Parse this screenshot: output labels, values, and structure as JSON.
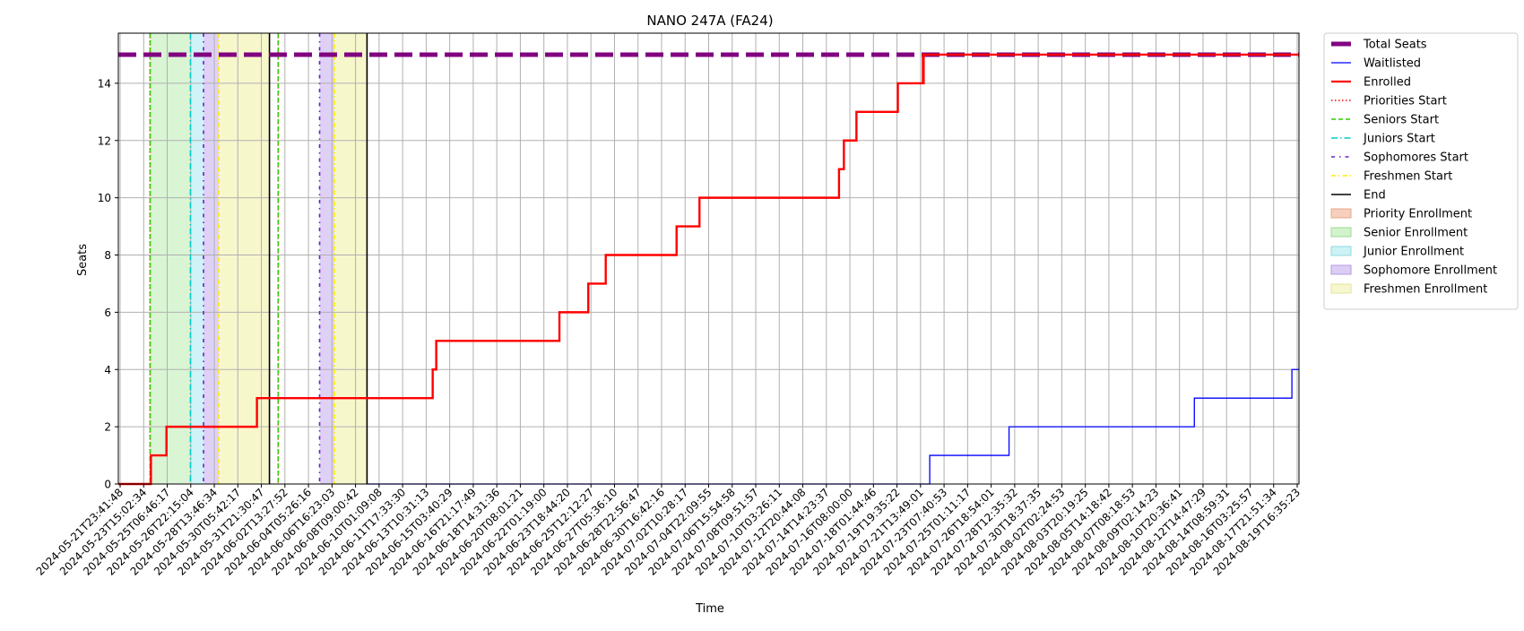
{
  "chart_data": {
    "type": "line",
    "title": "NANO 247A (FA24)",
    "xlabel": "Time",
    "ylabel": "Seats",
    "ylim": [
      0,
      15.75
    ],
    "xlim": [
      "2024-05-21T23:41:48",
      "2024-08-20T06:00:00"
    ],
    "grid": true,
    "legend_position": "outside-right",
    "y_ticks": [
      0,
      2,
      4,
      6,
      8,
      10,
      12,
      14
    ],
    "x_tick_labels": [
      "2024-05-21T23:41:48",
      "2024-05-23T15:02:34",
      "2024-05-25T06:46:17",
      "2024-05-26T22:15:04",
      "2024-05-28T13:46:34",
      "2024-05-30T05:42:17",
      "2024-05-31T21:30:47",
      "2024-06-02T13:27:52",
      "2024-06-04T05:26:16",
      "2024-06-06T16:23:03",
      "2024-06-08T09:00:42",
      "2024-06-10T01:09:08",
      "2024-06-11T17:33:30",
      "2024-06-13T10:31:13",
      "2024-06-15T03:40:29",
      "2024-06-16T21:17:49",
      "2024-06-18T14:31:36",
      "2024-06-20T08:01:21",
      "2024-06-22T01:19:00",
      "2024-06-23T18:44:20",
      "2024-06-25T12:12:27",
      "2024-06-27T05:36:10",
      "2024-06-28T22:56:47",
      "2024-06-30T16:42:16",
      "2024-07-02T10:28:17",
      "2024-07-04T22:09:55",
      "2024-07-06T15:54:58",
      "2024-07-08T09:51:57",
      "2024-07-10T03:26:11",
      "2024-07-12T20:44:08",
      "2024-07-14T14:23:37",
      "2024-07-16T08:00:00",
      "2024-07-18T01:44:46",
      "2024-07-19T19:35:22",
      "2024-07-21T13:49:01",
      "2024-07-23T07:40:53",
      "2024-07-25T01:11:17",
      "2024-07-26T18:54:01",
      "2024-07-28T12:35:32",
      "2024-07-30T18:37:35",
      "2024-08-02T02:24:53",
      "2024-08-03T20:19:25",
      "2024-08-05T14:18:42",
      "2024-08-07T08:18:53",
      "2024-08-09T02:14:23",
      "2024-08-10T20:36:41",
      "2024-08-12T14:47:29",
      "2024-08-14T08:59:31",
      "2024-08-16T03:25:57",
      "2024-08-17T21:51:34",
      "2024-08-19T16:35:23"
    ],
    "total_seats": 15,
    "series": [
      {
        "name": "Enrolled",
        "color": "#ff0000",
        "points": [
          [
            "2024-05-21T23:41:48",
            0
          ],
          [
            "2024-05-24T11:30:00",
            1
          ],
          [
            "2024-05-25T16:00:00",
            2
          ],
          [
            "2024-06-01T14:00:00",
            3
          ],
          [
            "2024-06-15T00:30:00",
            4
          ],
          [
            "2024-06-15T07:00:00",
            5
          ],
          [
            "2024-06-24T17:00:00",
            6
          ],
          [
            "2024-06-26T22:00:00",
            7
          ],
          [
            "2024-06-28T06:00:00",
            8
          ],
          [
            "2024-07-03T16:00:00",
            9
          ],
          [
            "2024-07-05T10:00:00",
            10
          ],
          [
            "2024-07-16T02:00:00",
            11
          ],
          [
            "2024-07-16T11:00:00",
            12
          ],
          [
            "2024-07-17T10:00:00",
            13
          ],
          [
            "2024-07-20T14:00:00",
            14
          ],
          [
            "2024-07-22T12:00:00",
            15
          ],
          [
            "2024-07-22T12:20:00",
            14
          ],
          [
            "2024-07-22T12:40:00",
            15
          ],
          [
            "2024-07-22T13:00:00",
            14
          ],
          [
            "2024-07-22T13:20:00",
            15
          ],
          [
            "2024-08-20T06:00:00",
            15
          ]
        ]
      },
      {
        "name": "Waitlisted",
        "color": "#0000ff",
        "points": [
          [
            "2024-06-10T00:00:00",
            0
          ],
          [
            "2024-07-23T00:30:00",
            1
          ],
          [
            "2024-07-29T02:00:00",
            2
          ],
          [
            "2024-08-12T06:00:00",
            3
          ],
          [
            "2024-08-19T17:00:00",
            4
          ],
          [
            "2024-08-20T06:00:00",
            4
          ]
        ]
      }
    ],
    "vertical_lines": [
      {
        "name": "Priorities Start",
        "color": "#ff0000",
        "dash": "1.5,2.5",
        "times": [
          "2024-05-24T10:00:00",
          "2024-06-03T05:00:00"
        ]
      },
      {
        "name": "Seniors Start",
        "color": "#33cc00",
        "dash": "5,3",
        "times": [
          "2024-05-24T10:00:00",
          "2024-06-03T05:00:00"
        ]
      },
      {
        "name": "Juniors Start",
        "color": "#00cccc",
        "dash": "7,3,1.5,3",
        "times": [
          "2024-05-27T12:00:00"
        ]
      },
      {
        "name": "Sophomores Start",
        "color": "#6622cc",
        "dash": "4,5,1.5,5",
        "times": [
          "2024-05-28T12:00:00",
          "2024-06-06T09:00:00"
        ]
      },
      {
        "name": "Freshmen Start",
        "color": "#ffee00",
        "dash": "5,3,1.5,3",
        "times": [
          "2024-05-29T16:00:00",
          "2024-06-07T12:00:00"
        ]
      },
      {
        "name": "End",
        "color": "#000000",
        "dash": "",
        "times": [
          "2024-06-02T13:00:00",
          "2024-06-10T00:00:00"
        ]
      }
    ],
    "bands": [
      {
        "name": "Priority Enrollment",
        "color": "#f4b183",
        "opacity": 0.35,
        "ranges": []
      },
      {
        "name": "Senior Enrollment",
        "color": "#b3ebaa",
        "opacity": 0.5,
        "ranges": [
          [
            "2024-05-24T10:00:00",
            "2024-05-27T12:00:00"
          ]
        ]
      },
      {
        "name": "Junior Enrollment",
        "color": "#9fe7ee",
        "opacity": 0.5,
        "ranges": [
          [
            "2024-05-27T12:00:00",
            "2024-05-28T12:00:00"
          ]
        ]
      },
      {
        "name": "Sophomore Enrollment",
        "color": "#c9b2f0",
        "opacity": 0.6,
        "ranges": [
          [
            "2024-05-28T12:00:00",
            "2024-05-29T16:00:00"
          ],
          [
            "2024-06-06T09:00:00",
            "2024-06-07T12:00:00"
          ]
        ]
      },
      {
        "name": "Freshmen Enrollment",
        "color": "#f3f3b6",
        "opacity": 0.7,
        "ranges": [
          [
            "2024-05-29T16:00:00",
            "2024-06-02T13:00:00"
          ],
          [
            "2024-06-07T12:00:00",
            "2024-06-10T00:00:00"
          ]
        ]
      }
    ],
    "legend": [
      {
        "label": "Total Seats",
        "kind": "line",
        "color": "#800080",
        "width": 5,
        "dash": ""
      },
      {
        "label": "Waitlisted",
        "kind": "line",
        "color": "#0000ff",
        "width": 1.2,
        "dash": ""
      },
      {
        "label": "Enrolled",
        "kind": "line",
        "color": "#ff0000",
        "width": 2.2,
        "dash": ""
      },
      {
        "label": "Priorities Start",
        "kind": "line",
        "color": "#ff0000",
        "width": 1.5,
        "dash": "1.5,2.5"
      },
      {
        "label": "Seniors Start",
        "kind": "line",
        "color": "#33cc00",
        "width": 1.5,
        "dash": "5,3"
      },
      {
        "label": "Juniors Start",
        "kind": "line",
        "color": "#00cccc",
        "width": 1.5,
        "dash": "7,3,1.5,3"
      },
      {
        "label": "Sophomores Start",
        "kind": "line",
        "color": "#6622cc",
        "width": 1.5,
        "dash": "4,5,1.5,5"
      },
      {
        "label": "Freshmen Start",
        "kind": "line",
        "color": "#ffee00",
        "width": 1.5,
        "dash": "5,3,1.5,3"
      },
      {
        "label": "End",
        "kind": "line",
        "color": "#000000",
        "width": 1.5,
        "dash": ""
      },
      {
        "label": "Priority Enrollment",
        "kind": "patch",
        "color": "#f6d0bd",
        "edge": "#e3a98b"
      },
      {
        "label": "Senior Enrollment",
        "kind": "patch",
        "color": "#d3f3cc",
        "edge": "#9ed893"
      },
      {
        "label": "Junior Enrollment",
        "kind": "patch",
        "color": "#cdf2f4",
        "edge": "#92dbe2"
      },
      {
        "label": "Sophomore Enrollment",
        "kind": "patch",
        "color": "#dccdf5",
        "edge": "#b49ae3"
      },
      {
        "label": "Freshmen Enrollment",
        "kind": "patch",
        "color": "#f7f7cf",
        "edge": "#e3e39b"
      }
    ]
  }
}
